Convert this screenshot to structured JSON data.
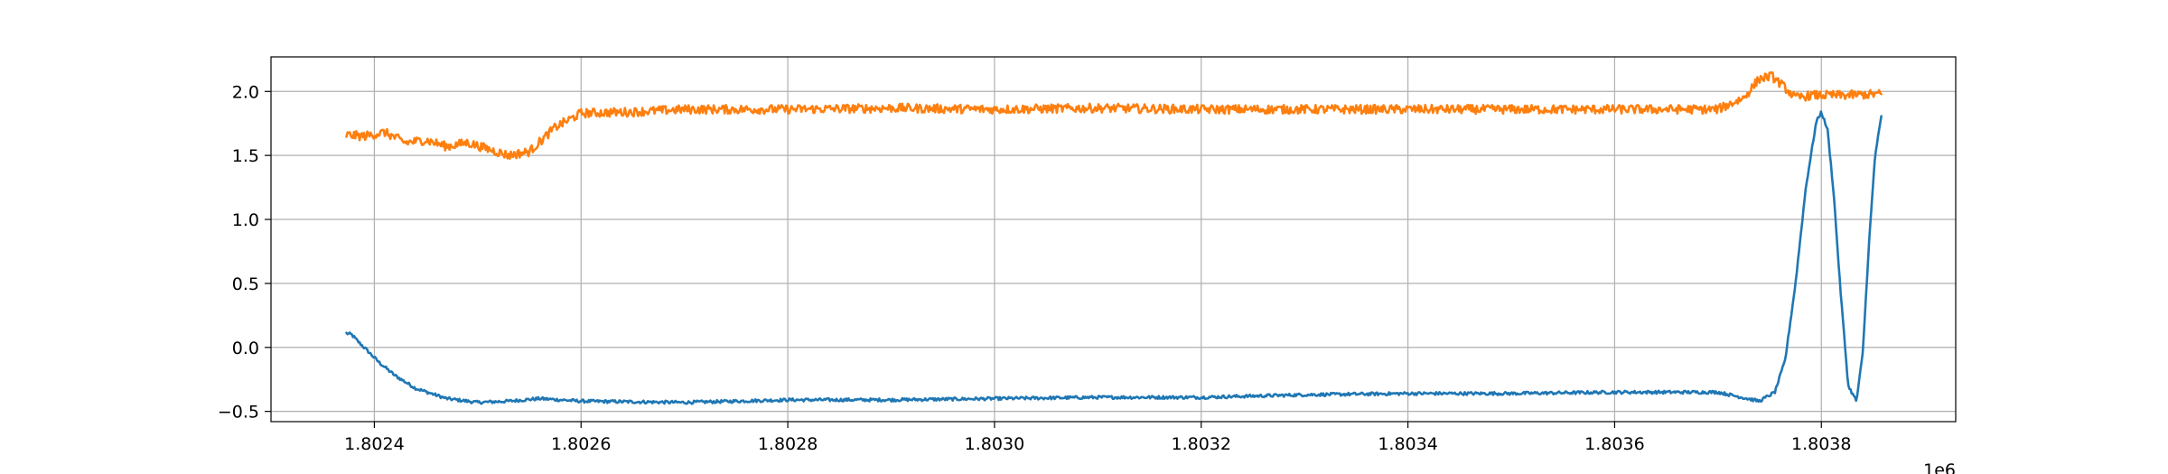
{
  "chart_data": {
    "type": "line",
    "title": "",
    "xlabel": "",
    "ylabel": "",
    "x_offset_label": "1e6",
    "xlim": [
      1802300,
      1803930
    ],
    "ylim": [
      -0.58,
      2.27
    ],
    "x_ticks": [
      1802400,
      1802600,
      1802800,
      1803000,
      1803200,
      1803400,
      1803600,
      1803800
    ],
    "x_tick_labels": [
      "1.8024",
      "1.8026",
      "1.8028",
      "1.8030",
      "1.8032",
      "1.8034",
      "1.8036",
      "1.8038"
    ],
    "y_ticks": [
      -0.5,
      0.0,
      0.5,
      1.0,
      1.5,
      2.0
    ],
    "y_tick_labels": [
      "−0.5",
      "0.0",
      "0.5",
      "1.0",
      "1.5",
      "2.0"
    ],
    "grid": true,
    "legend": "none",
    "series": [
      {
        "color": "#1f77b4",
        "noise": 0.012,
        "x": [
          1802373,
          1802378,
          1802385,
          1802395,
          1802405,
          1802420,
          1802440,
          1802470,
          1802500,
          1802530,
          1802560,
          1802600,
          1802700,
          1802800,
          1802900,
          1803000,
          1803100,
          1803200,
          1803300,
          1803400,
          1803500,
          1803600,
          1803700,
          1803740,
          1803755,
          1803765,
          1803775,
          1803785,
          1803795,
          1803800,
          1803806,
          1803812,
          1803818,
          1803826,
          1803834,
          1803840,
          1803846,
          1803852,
          1803858
        ],
        "y": [
          0.11,
          0.1,
          0.04,
          -0.04,
          -0.12,
          -0.22,
          -0.32,
          -0.4,
          -0.43,
          -0.42,
          -0.4,
          -0.42,
          -0.43,
          -0.41,
          -0.41,
          -0.4,
          -0.39,
          -0.39,
          -0.37,
          -0.36,
          -0.36,
          -0.35,
          -0.35,
          -0.42,
          -0.35,
          -0.1,
          0.5,
          1.25,
          1.76,
          1.84,
          1.7,
          1.2,
          0.5,
          -0.3,
          -0.42,
          -0.05,
          0.8,
          1.5,
          1.8
        ]
      },
      {
        "color": "#ff7f0e",
        "noise": 0.035,
        "x": [
          1802373,
          1802390,
          1802410,
          1802430,
          1802450,
          1802470,
          1802490,
          1802510,
          1802530,
          1802550,
          1802575,
          1802600,
          1802650,
          1802700,
          1802800,
          1802900,
          1803000,
          1803100,
          1803200,
          1803300,
          1803400,
          1803500,
          1803600,
          1803700,
          1803725,
          1803740,
          1803752,
          1803762,
          1803775,
          1803790,
          1803820,
          1803858
        ],
        "y": [
          1.66,
          1.65,
          1.68,
          1.6,
          1.62,
          1.57,
          1.6,
          1.55,
          1.5,
          1.53,
          1.72,
          1.83,
          1.84,
          1.86,
          1.86,
          1.87,
          1.86,
          1.87,
          1.86,
          1.86,
          1.86,
          1.86,
          1.86,
          1.86,
          1.95,
          2.1,
          2.12,
          2.05,
          1.95,
          1.97,
          1.97,
          1.98
        ]
      }
    ]
  }
}
